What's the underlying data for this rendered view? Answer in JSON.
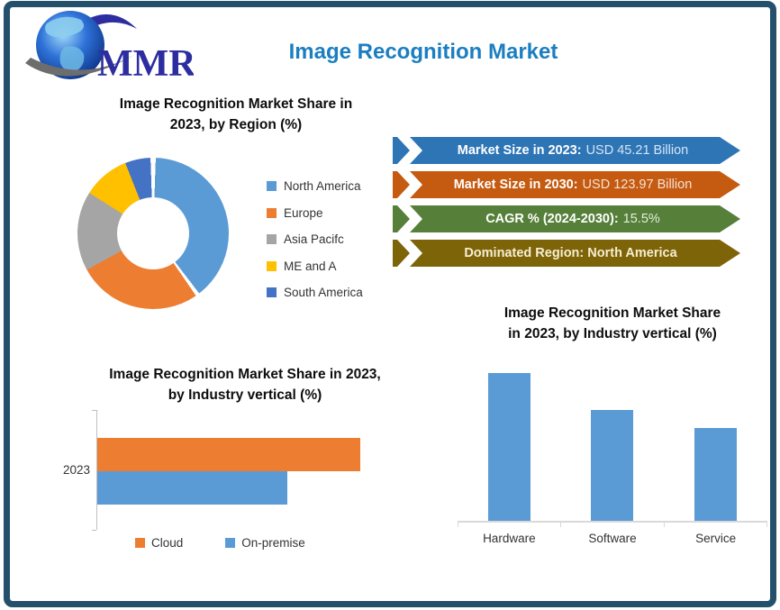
{
  "theme": {
    "frame_border": "#24506B",
    "background": "#FFFFFF"
  },
  "logo": {
    "text": "MMR",
    "text_color": "#2D2DA0"
  },
  "header": {
    "title": "Image Recognition Market",
    "color": "#1B7EC1"
  },
  "region_section": {
    "title_line1": "Image Recognition Market Share in",
    "title_line2": "2023, by Region (%)"
  },
  "stats": {
    "banners": [
      {
        "label": "Market Size in 2023:",
        "value": "USD 45.21 Billion",
        "color": "#2E75B6",
        "label_color": "#FFFFFF",
        "value_color": "#D6E6F5"
      },
      {
        "label": "Market Size in 2030:",
        "value": "USD 123.97 Billion",
        "color": "#C55A11",
        "label_color": "#FFFFFF",
        "value_color": "#F5E3D5"
      },
      {
        "label": "CAGR % (2024-2030):",
        "value": "15.5%",
        "color": "#56803A",
        "label_color": "#FFFFFF",
        "value_color": "#E4EDDC"
      },
      {
        "label": "Dominated Region: North America",
        "value": "",
        "color": "#7E6409",
        "label_color": "#F6EED0",
        "value_color": "#F6EED0"
      }
    ]
  },
  "hbar_section": {
    "title_line1": "Image Recognition Market Share in 2023,",
    "title_line2": "by Industry vertical (%)"
  },
  "vbar_section": {
    "title_line1": "Image Recognition Market Share",
    "title_line2": "in 2023, by Industry vertical (%)"
  },
  "chart_data": [
    {
      "type": "pie",
      "subtype": "donut",
      "title": "Image Recognition Market Share in 2023, by Region (%)",
      "labels": [
        "North America",
        "Europe",
        "Asia Pacifc",
        "ME and A",
        "South America"
      ],
      "values": [
        40,
        27,
        17,
        10,
        6
      ],
      "colors": [
        "#5B9BD5",
        "#ED7D31",
        "#A5A5A5",
        "#FFC000",
        "#4472C4"
      ],
      "legend_position": "right",
      "units": "%"
    },
    {
      "type": "bar",
      "orientation": "horizontal",
      "title": "Image Recognition Market Share in 2023, by Industry vertical (%)",
      "categories": [
        "2023"
      ],
      "series": [
        {
          "name": "Cloud",
          "value": 58,
          "color": "#ED7D31"
        },
        {
          "name": "On-premise",
          "value": 42,
          "color": "#5B9BD5"
        }
      ],
      "xlim": [
        0,
        66
      ],
      "legend_position": "bottom",
      "units": "%"
    },
    {
      "type": "bar",
      "orientation": "vertical",
      "title": "Image Recognition Market Share in 2023, by Industry vertical (%)",
      "categories": [
        "Hardware",
        "Software",
        "Service"
      ],
      "values": [
        40,
        30,
        25
      ],
      "color": "#5B9BD5",
      "ylim": [
        0,
        45
      ],
      "units": "%"
    }
  ]
}
